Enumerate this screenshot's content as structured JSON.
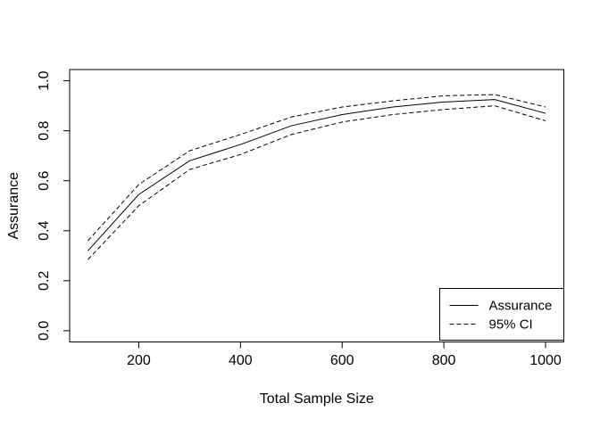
{
  "chart_data": {
    "type": "line",
    "title": "",
    "xlabel": "Total Sample Size",
    "ylabel": "Assurance",
    "x": [
      100,
      200,
      300,
      400,
      500,
      600,
      700,
      800,
      900,
      1000
    ],
    "series": [
      {
        "name": "Assurance",
        "style": "solid",
        "values": [
          0.32,
          0.545,
          0.68,
          0.745,
          0.82,
          0.865,
          0.895,
          0.915,
          0.925,
          0.87
        ]
      },
      {
        "name": "95% CI upper",
        "style": "dashed",
        "values": [
          0.36,
          0.585,
          0.72,
          0.785,
          0.855,
          0.895,
          0.92,
          0.94,
          0.945,
          0.895
        ]
      },
      {
        "name": "95% CI lower",
        "style": "dashed",
        "values": [
          0.285,
          0.5,
          0.645,
          0.705,
          0.785,
          0.835,
          0.865,
          0.885,
          0.9,
          0.84
        ]
      }
    ],
    "xticks": [
      "200",
      "400",
      "600",
      "800",
      "1000"
    ],
    "yticks": [
      "0.0",
      "0.2",
      "0.4",
      "0.6",
      "0.8",
      "1.0"
    ],
    "xlim": [
      64,
      1036
    ],
    "ylim": [
      -0.045,
      1.045
    ],
    "grid": false,
    "legend": {
      "position": "bottomright",
      "entries": [
        {
          "label": "Assurance",
          "style": "solid"
        },
        {
          "label": "95% CI",
          "style": "dashed"
        }
      ]
    },
    "colors": {
      "line": "#000000",
      "background": "#ffffff"
    }
  }
}
